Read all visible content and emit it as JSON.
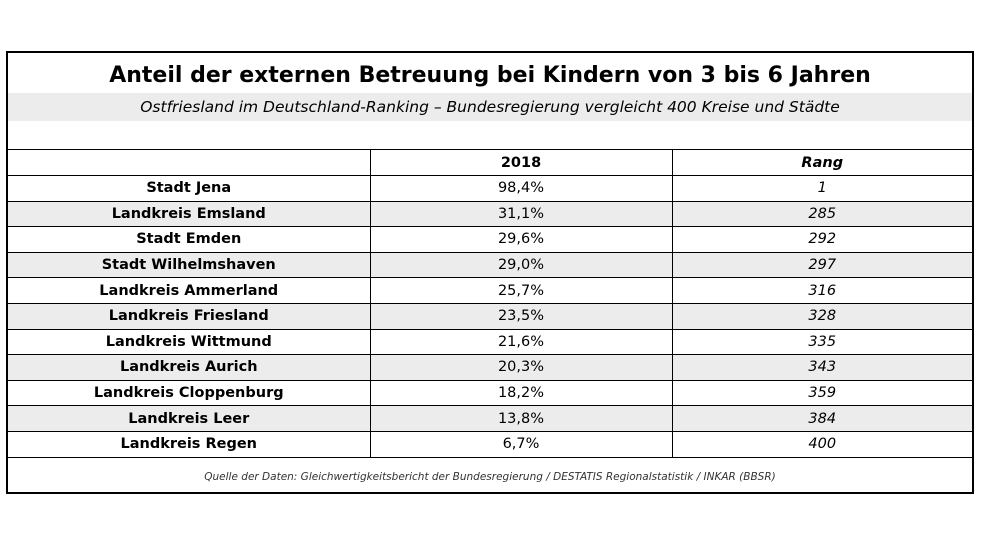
{
  "chart_data": {
    "type": "table",
    "title": "Anteil der externen Betreuung bei Kindern von 3 bis 6 Jahren",
    "subtitle": "Ostfriesland im Deutschland-Ranking – Bundesregierung vergleicht 400 Kreise und Städte",
    "columns": [
      "",
      "2018",
      "Rang"
    ],
    "rows": [
      {
        "name": "Stadt Jena",
        "value": "98,4%",
        "rank": "1"
      },
      {
        "name": "Landkreis Emsland",
        "value": "31,1%",
        "rank": "285"
      },
      {
        "name": "Stadt Emden",
        "value": "29,6%",
        "rank": "292"
      },
      {
        "name": "Stadt Wilhelmshaven",
        "value": "29,0%",
        "rank": "297"
      },
      {
        "name": "Landkreis Ammerland",
        "value": "25,7%",
        "rank": "316"
      },
      {
        "name": "Landkreis Friesland",
        "value": "23,5%",
        "rank": "328"
      },
      {
        "name": "Landkreis Wittmund",
        "value": "21,6%",
        "rank": "335"
      },
      {
        "name": "Landkreis Aurich",
        "value": "20,3%",
        "rank": "343"
      },
      {
        "name": "Landkreis Cloppenburg",
        "value": "18,2%",
        "rank": "359"
      },
      {
        "name": "Landkreis Leer",
        "value": "13,8%",
        "rank": "384"
      },
      {
        "name": "Landkreis Regen",
        "value": "6,7%",
        "rank": "400"
      }
    ],
    "source": "Quelle der Daten: Gleichwertigkeitsbericht der Bundesregierung / DESTATIS Regionalstatistik / INKAR (BBSR)"
  }
}
